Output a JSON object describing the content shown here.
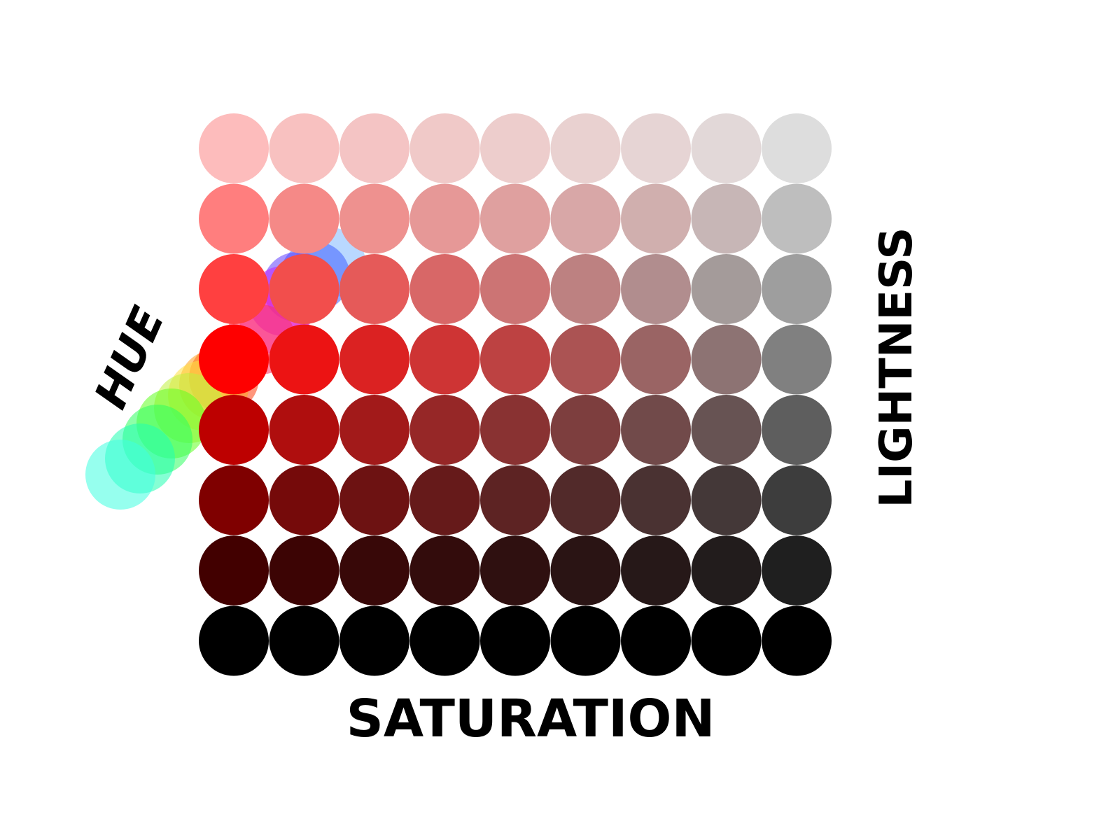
{
  "labels": {
    "hue": "HUE",
    "lightness": "LIGHTNESS",
    "saturation": "SATURATION"
  },
  "grid": {
    "rows": 8,
    "cols": 9,
    "colors": [
      [
        "#fdbcbc",
        "#f8c1c0",
        "#f4c4c4",
        "#f0c9c8",
        "#edcdcc",
        "#e9d1d0",
        "#e6d4d4",
        "#e2d8d8",
        "#dddddd"
      ],
      [
        "#ff7e7e",
        "#f58987",
        "#ee918f",
        "#e69897",
        "#dfa09f",
        "#d8a7a7",
        "#d0afae",
        "#c7b6b6",
        "#bebebe"
      ],
      [
        "#ff4040",
        "#f24e4c",
        "#e55a59",
        "#d86767",
        "#cc7474",
        "#bd8181",
        "#b18d8e",
        "#a49b9a",
        "#9e9e9e"
      ],
      [
        "#fe0000",
        "#ec1313",
        "#db2222",
        "#ce3434",
        "#bd4242",
        "#ab5353",
        "#9a6464",
        "#8d7373",
        "#808080"
      ],
      [
        "#bd0000",
        "#af0e0e",
        "#a21a1a",
        "#962727",
        "#893232",
        "#7d3e3e",
        "#714a4a",
        "#675353",
        "#5e5e5e"
      ],
      [
        "#7f0000",
        "#750a0a",
        "#6d1212",
        "#661a1a",
        "#5d2323",
        "#522a2a",
        "#4a3232",
        "#443838",
        "#3d3d3d"
      ],
      [
        "#420000",
        "#3c0404",
        "#380808",
        "#330c0c",
        "#2f1010",
        "#2a1414",
        "#261818",
        "#221c1c",
        "#1f1f1f"
      ],
      [
        "#000000",
        "#000000",
        "#000000",
        "#000000",
        "#000000",
        "#000000",
        "#000000",
        "#000000",
        "#000000"
      ]
    ]
  },
  "hue_circles": {
    "colors": [
      "#80b8ff",
      "#4060ff",
      "#6040ff",
      "#c020ff",
      "#f020c0",
      "#ff3060",
      "#ff4010",
      "#ffa020",
      "#ffe040",
      "#c0f040",
      "#60ff20",
      "#30ff60",
      "#20ffb0",
      "#40ffe0"
    ]
  }
}
